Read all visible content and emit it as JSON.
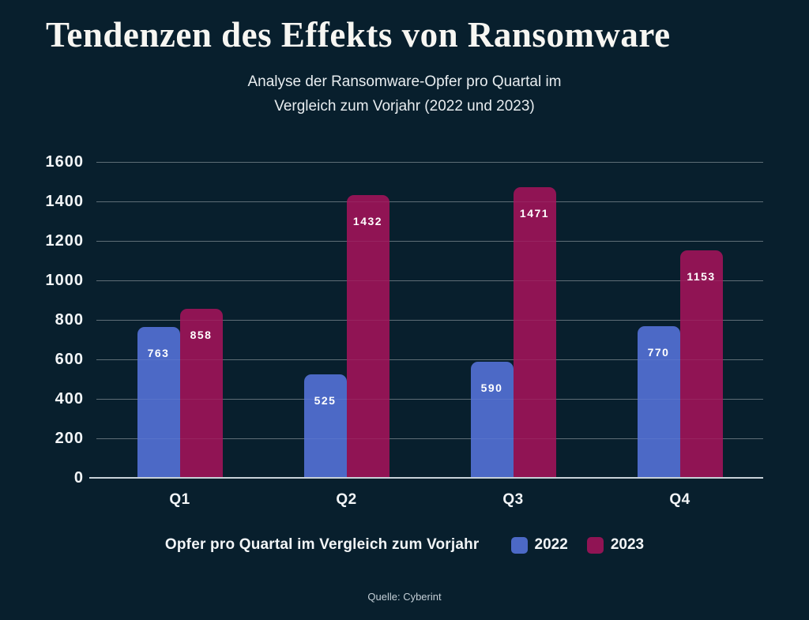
{
  "title": "Tendenzen des Effekts von Ransomware",
  "subtitle": {
    "line1": "Analyse der Ransomware-Opfer pro Quartal im",
    "line2": "Vergleich zum Vorjahr (2022 und 2023)"
  },
  "source": "Quelle: Cyberint",
  "colors": {
    "background": "#081f2d",
    "bar_2022": "#4c69c6",
    "bar_2023": "#901454",
    "gridline": "rgba(255,255,255,0.30)",
    "axis_line": "#c7d1d8",
    "text": "#f2f5f7"
  },
  "chart_data": {
    "type": "bar",
    "categories": [
      "Q1",
      "Q2",
      "Q3",
      "Q4"
    ],
    "series": [
      {
        "name": "2022",
        "color": "#4c69c6",
        "values": [
          763,
          525,
          590,
          770
        ]
      },
      {
        "name": "2023",
        "color": "#901454",
        "values": [
          858,
          1432,
          1471,
          1153
        ]
      }
    ],
    "ylim": [
      0,
      1600
    ],
    "ytick_step": 200,
    "grid": true,
    "legend_title": "Opfer pro Quartal im Vergleich zum Vorjahr",
    "legend_position": "bottom",
    "value_labels": "inside-top"
  }
}
